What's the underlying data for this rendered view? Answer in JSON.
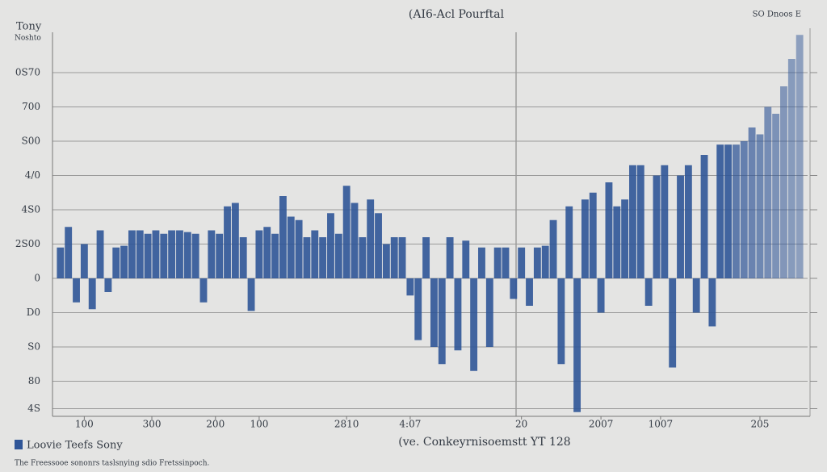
{
  "chart_data": {
    "type": "bar",
    "title": "(AI6-Acl Pourftal",
    "subtitle": "SO Dnoos E",
    "y_title": "Tony",
    "y_subtitle": "Noshto",
    "x_title": "(ve. Conkeyrnisoemstt YT 128",
    "footnote": "The Freessooe sononrs taslsnying sdio Fretssinpoch.",
    "x": [
      1,
      2,
      3,
      4,
      5,
      6,
      7,
      8,
      9,
      10,
      11,
      12,
      13,
      14,
      15,
      16,
      17,
      18,
      19,
      20,
      21,
      22,
      23,
      24,
      25,
      26,
      27,
      28,
      29,
      30,
      31,
      32,
      33,
      34,
      35,
      36,
      37,
      38,
      39,
      40,
      41,
      42,
      43,
      44,
      45,
      46,
      47,
      48,
      49,
      50,
      51,
      52,
      53,
      54,
      55,
      56,
      57,
      58,
      59,
      60,
      61,
      62,
      63,
      64,
      65,
      66,
      67,
      68,
      69,
      70,
      71,
      72,
      73,
      74,
      75,
      76,
      77,
      78,
      79,
      80,
      81,
      82,
      83,
      84,
      85,
      86,
      87,
      88,
      89,
      90,
      91,
      92,
      93,
      94
    ],
    "series": [
      {
        "name": "Loovie Teefs Sony",
        "color": "#2f5597",
        "values": [
          0.9,
          1.5,
          -0.7,
          1.0,
          -0.9,
          1.4,
          -0.4,
          0.9,
          0.95,
          1.4,
          1.4,
          1.3,
          1.4,
          1.3,
          1.4,
          1.4,
          1.35,
          1.3,
          -0.7,
          1.4,
          1.3,
          2.1,
          2.2,
          1.2,
          -0.95,
          1.4,
          1.5,
          1.3,
          2.4,
          1.8,
          1.7,
          1.2,
          1.4,
          1.2,
          1.9,
          1.3,
          2.7,
          2.2,
          1.2,
          2.3,
          1.9,
          1.0,
          1.2,
          1.2,
          -0.5,
          -1.8,
          1.2,
          -2.0,
          -2.5,
          1.2,
          -2.1,
          1.1,
          -2.7,
          0.9,
          -2.0,
          0.9,
          0.9,
          -0.6,
          0.9,
          -0.8,
          0.9,
          0.95,
          1.7,
          -2.5,
          2.1,
          -3.9,
          2.3,
          2.5,
          -1.0,
          2.8,
          2.1,
          2.3,
          3.3,
          3.3,
          -0.8,
          3.0,
          3.3,
          -2.6,
          3.0,
          3.3,
          -1.0,
          3.6,
          -1.4,
          3.9,
          3.9,
          3.9,
          4.0,
          4.4,
          4.2,
          5.0,
          4.8,
          5.6,
          6.4,
          7.1
        ]
      }
    ],
    "xlim": [
      0,
      95
    ],
    "xticks": [
      {
        "value": 4,
        "label": "100"
      },
      {
        "value": 12.5,
        "label": "300"
      },
      {
        "value": 20.5,
        "label": "200"
      },
      {
        "value": 26,
        "label": "100"
      },
      {
        "value": 37,
        "label": "2810"
      },
      {
        "value": 45,
        "label": "4:07"
      },
      {
        "value": 59,
        "label": "20"
      },
      {
        "value": 69,
        "label": "2007"
      },
      {
        "value": 76.5,
        "label": "1007"
      },
      {
        "value": 89,
        "label": "205"
      }
    ],
    "ylim": [
      -4.2,
      7.3
    ],
    "yticks": [
      {
        "value": 6,
        "label": "0S70"
      },
      {
        "value": 5,
        "label": "700"
      },
      {
        "value": 4,
        "label": "S00"
      },
      {
        "value": 3,
        "label": "4/0"
      },
      {
        "value": 2,
        "label": "4S0"
      },
      {
        "value": 1,
        "label": "2S00"
      },
      0,
      {
        "value": -1,
        "label": "D0"
      },
      {
        "value": -2,
        "label": "S0"
      },
      {
        "value": -3,
        "label": "80"
      },
      {
        "value": -3.8,
        "label": "4S"
      }
    ],
    "grid": true
  }
}
